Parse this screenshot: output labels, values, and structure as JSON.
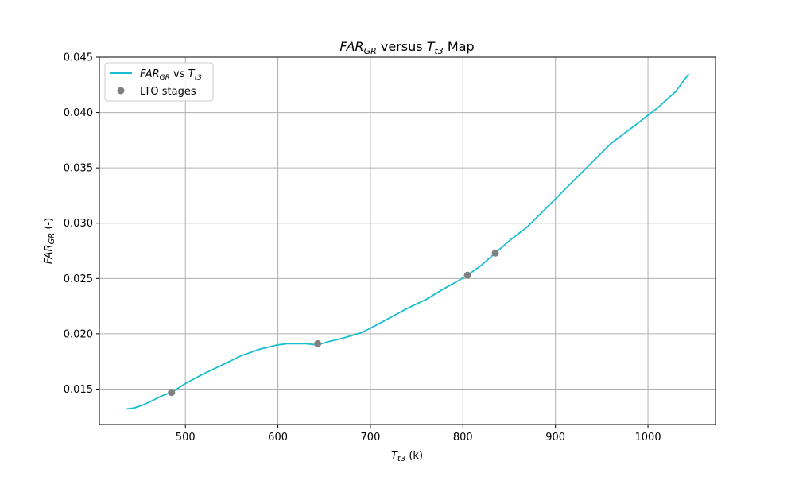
{
  "chart_data": {
    "type": "line",
    "title": {
      "pre": "FAR",
      "pre_sub": "GR",
      "mid": " versus ",
      "var": "T",
      "var_sub": "t3",
      "post": " Map"
    },
    "xlabel": {
      "var": "T",
      "sub": "t3",
      "post": " (k)"
    },
    "ylabel": {
      "var": "FAR",
      "sub": "GR",
      "post": " (-)"
    },
    "xlim": [
      407,
      1073
    ],
    "ylim": [
      0.0118,
      0.045
    ],
    "xticks": [
      500,
      600,
      700,
      800,
      900,
      1000
    ],
    "yticks": [
      0.015,
      0.02,
      0.025,
      0.03,
      0.035,
      0.04,
      0.045
    ],
    "ytick_labels": [
      "0.015",
      "0.020",
      "0.025",
      "0.030",
      "0.035",
      "0.040",
      "0.045"
    ],
    "grid": true,
    "legend_position": "upper-left",
    "series": [
      {
        "name": {
          "var": "FAR",
          "sub": "GR",
          "mid": " vs ",
          "var2": "T",
          "sub2": "t3"
        },
        "kind": "line",
        "color": "#17becf",
        "x": [
          436,
          445,
          455,
          465,
          475,
          485,
          500,
          520,
          540,
          560,
          580,
          600,
          610,
          620,
          630,
          643,
          655,
          670,
          690,
          700,
          720,
          740,
          760,
          780,
          795,
          805,
          820,
          835,
          850,
          870,
          900,
          930,
          960,
          990,
          1010,
          1030,
          1044
        ],
        "y": [
          0.0132,
          0.0133,
          0.0136,
          0.014,
          0.0144,
          0.0147,
          0.0155,
          0.0164,
          0.0172,
          0.018,
          0.0186,
          0.019,
          0.0191,
          0.0191,
          0.0191,
          0.019,
          0.0193,
          0.0196,
          0.0201,
          0.0205,
          0.0214,
          0.0223,
          0.0231,
          0.0241,
          0.0248,
          0.0253,
          0.0262,
          0.0273,
          0.0284,
          0.0297,
          0.0322,
          0.0347,
          0.0372,
          0.0391,
          0.0404,
          0.0419,
          0.0435
        ]
      },
      {
        "name": "LTO stages",
        "kind": "scatter",
        "color": "#808080",
        "x": [
          485,
          643,
          805,
          835
        ],
        "y": [
          0.0147,
          0.0191,
          0.0253,
          0.0273
        ]
      }
    ]
  }
}
